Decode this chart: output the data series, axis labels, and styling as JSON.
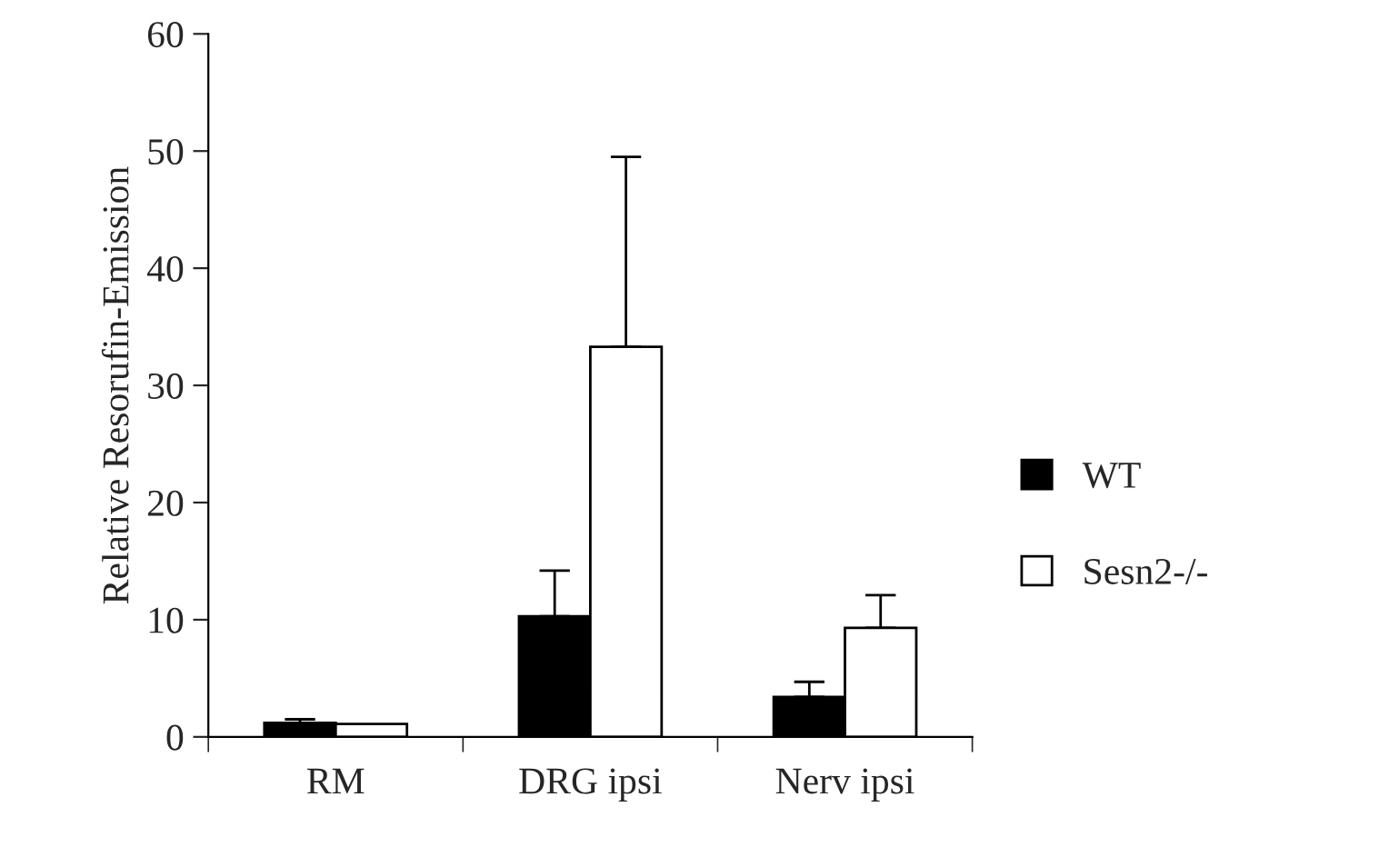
{
  "chart_data": {
    "type": "bar",
    "ylabel": "Relative Resorufin-Emission",
    "categories": [
      "RM",
      "DRG ipsi",
      "Nerv ipsi"
    ],
    "series": [
      {
        "name": "WT",
        "color": "#000000",
        "values": [
          1.2,
          10.3,
          3.4
        ],
        "errors": [
          [
            1.2,
            1.5
          ],
          [
            10.3,
            14.2
          ],
          [
            3.4,
            4.7
          ]
        ]
      },
      {
        "name": "Sesn2-/-",
        "color": "#ffffff",
        "values": [
          1.1,
          33.3,
          9.3
        ],
        "errors": [
          null,
          [
            33.3,
            49.5
          ],
          [
            9.3,
            12.1
          ]
        ]
      }
    ],
    "ylim": [
      0,
      60
    ],
    "yticks": [
      0,
      10,
      20,
      30,
      40,
      50,
      60
    ],
    "grid": false,
    "legend": "right"
  }
}
